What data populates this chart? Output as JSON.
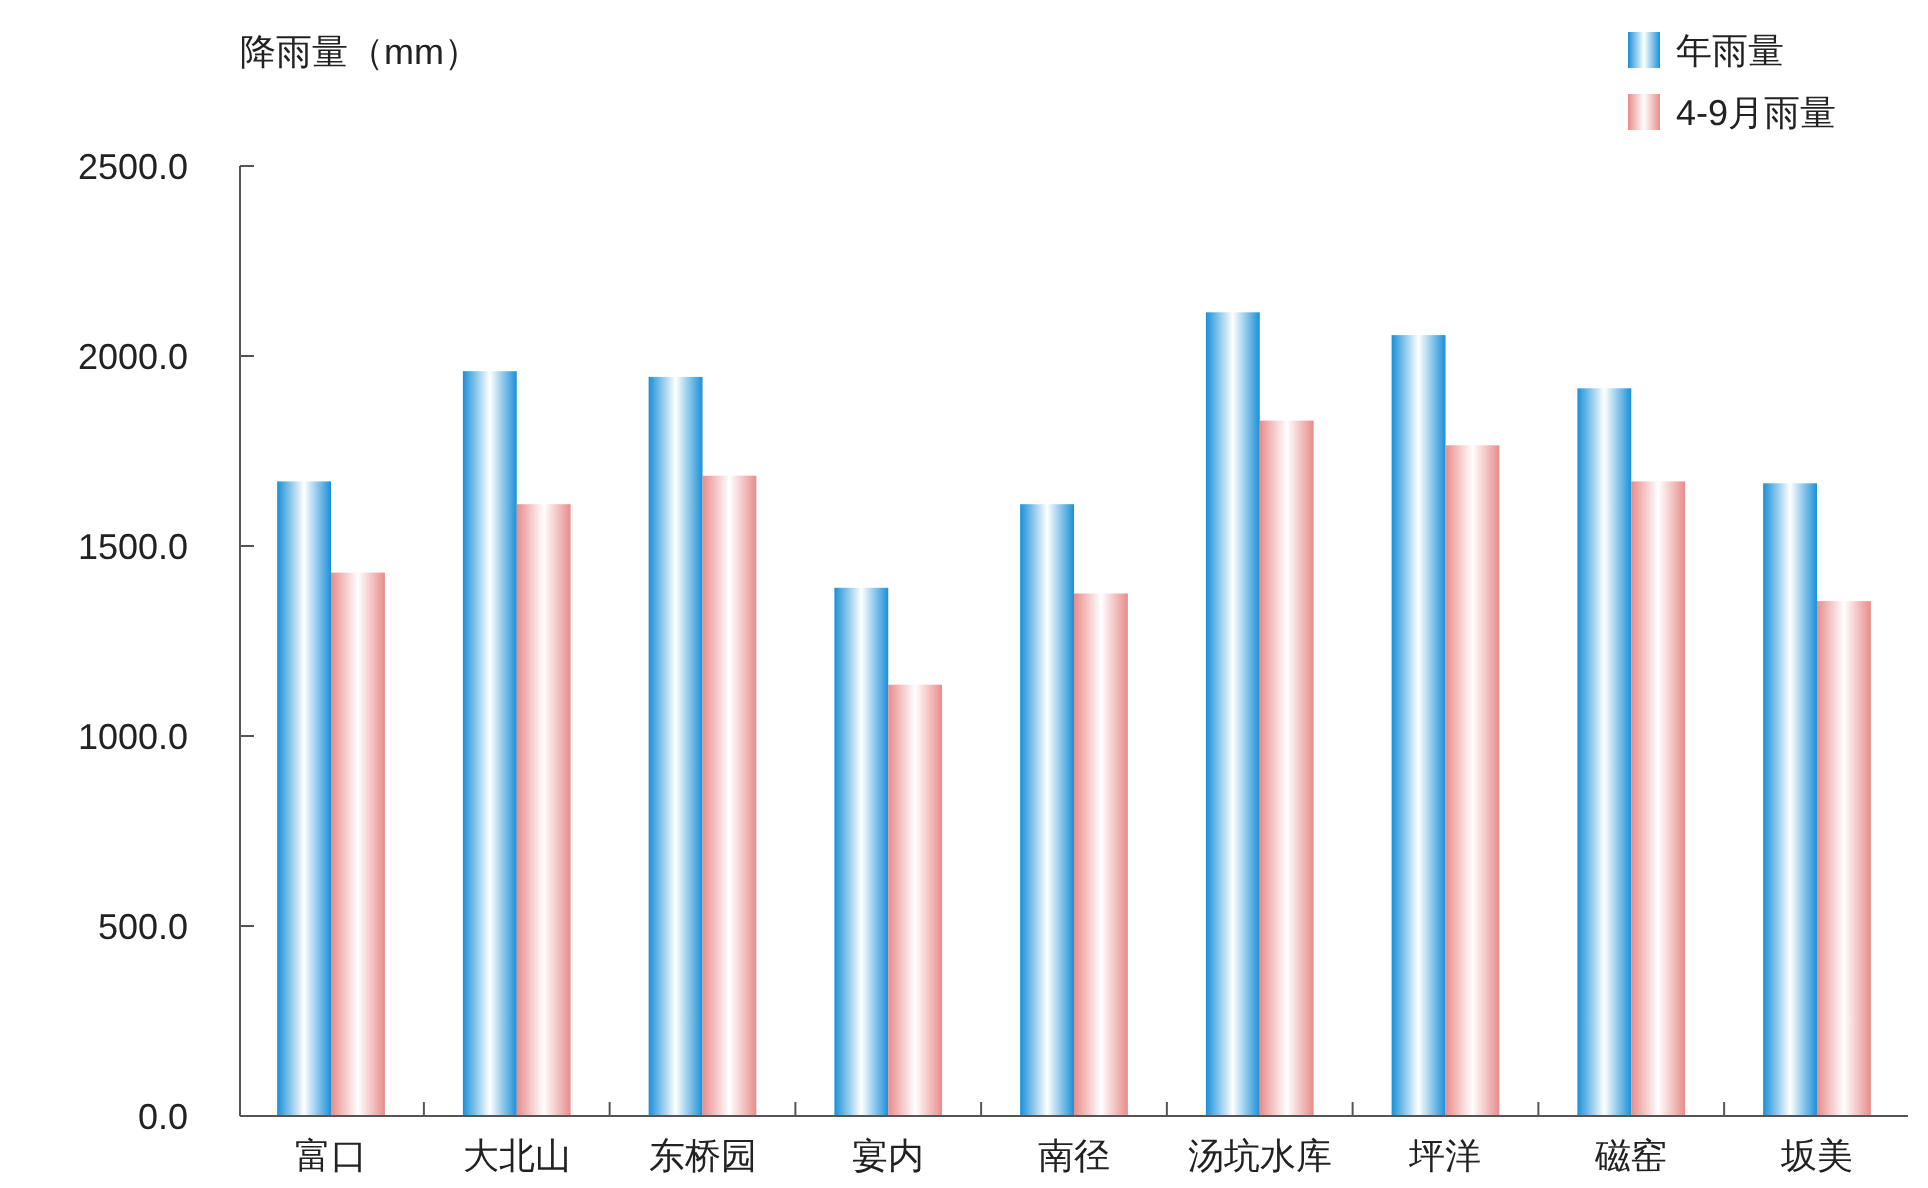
{
  "chart_data": {
    "type": "bar",
    "ylabel": "降雨量（mm）",
    "categories": [
      "富口",
      "大北山",
      "东桥园",
      "宴内",
      "南径",
      "汤坑水库",
      "坪洋",
      "磁窑",
      "坂美"
    ],
    "series": [
      {
        "name": "年雨量",
        "color": "#1a90d8",
        "values": [
          1670,
          1960,
          1945,
          1390,
          1610,
          2115,
          2055,
          1915,
          1665
        ]
      },
      {
        "name": "4-9月雨量",
        "color": "#e98b8b",
        "values": [
          1430,
          1610,
          1685,
          1135,
          1375,
          1830,
          1765,
          1670,
          1355
        ]
      }
    ],
    "ylim": [
      0,
      2500
    ],
    "yticks": [
      {
        "value": 0,
        "label": "0.0"
      },
      {
        "value": 500,
        "label": "500.0"
      },
      {
        "value": 1000,
        "label": "1000.0"
      },
      {
        "value": 1500,
        "label": "1500.0"
      },
      {
        "value": 2000,
        "label": "2000.0"
      },
      {
        "value": 2500,
        "label": "2500.0"
      }
    ],
    "grid": false,
    "legend": "top right"
  }
}
